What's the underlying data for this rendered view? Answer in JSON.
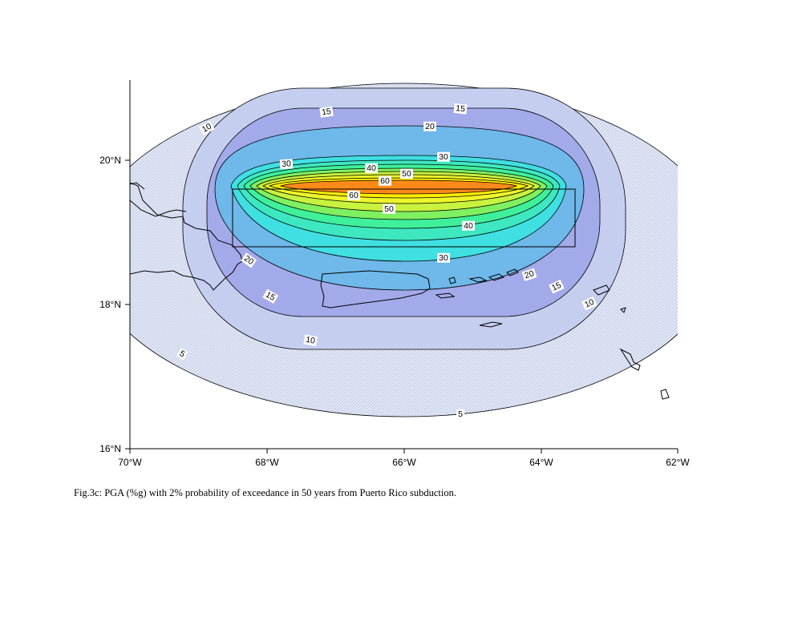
{
  "figure": {
    "caption": "Fig.3c:  PGA (%g) with 2% probability of exceedance in 50 years from Puerto Rico subduction."
  },
  "axes": {
    "lon_ticks": [
      "70°W",
      "68°W",
      "66°W",
      "64°W",
      "62°W"
    ],
    "lat_ticks": [
      "20°N",
      "18°N",
      "16°N"
    ]
  },
  "contour_levels": [
    5,
    10,
    15,
    20,
    30,
    40,
    50,
    60
  ],
  "contour_labels": [
    "5",
    "10",
    "15",
    "20",
    "30",
    "40",
    "50",
    "60"
  ],
  "colors": {
    "level_5": "#dde3f4",
    "level_10": "#c8d0f0",
    "level_15": "#a4acec",
    "level_20": "#6fb9ea",
    "level_30": "#3ee0e2",
    "level_40": "#3cef9c",
    "level_50": "#d8f23c",
    "level_60": "#ffee00",
    "peak": "#ff8a1a",
    "outline": "#000000"
  }
}
